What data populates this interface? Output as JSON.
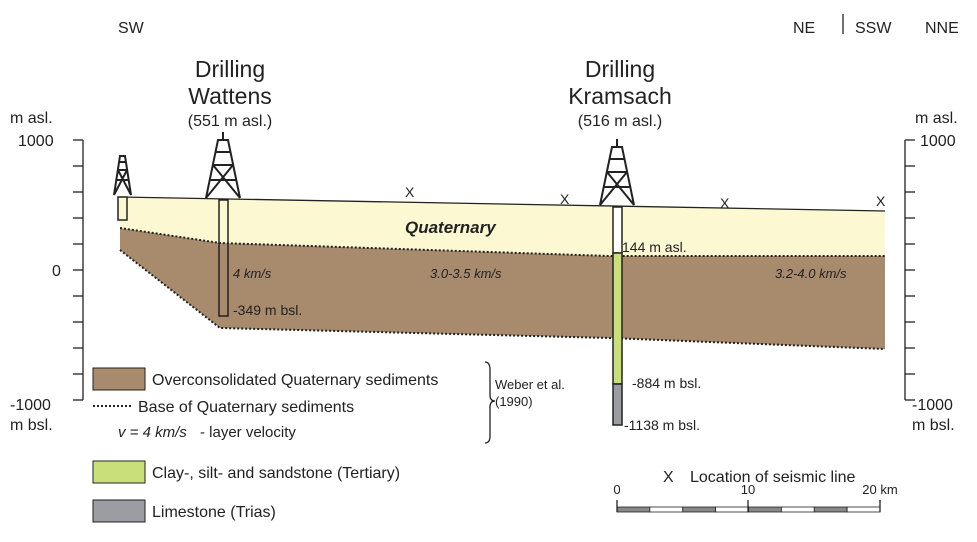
{
  "directions": {
    "left": "SW",
    "right_1": "NE",
    "right_2": "SSW",
    "right_3": "NNE"
  },
  "drillings": [
    {
      "name_1": "Drilling",
      "name_2": "Wattens",
      "elevation": "(551 m asl.)"
    },
    {
      "name_1": "Drilling",
      "name_2": "Kramsach",
      "elevation": "(516 m asl.)"
    }
  ],
  "left_axis": {
    "top_unit": "m asl.",
    "top": "1000",
    "zero": "0",
    "bottom": "-1000",
    "bottom_unit": "m bsl."
  },
  "right_axis": {
    "top_unit": "m asl.",
    "top": "1000",
    "bottom": "-1000",
    "bottom_unit": "m bsl."
  },
  "section": {
    "quaternary": "Quaternary",
    "velocities": [
      "4 km/s",
      "3.0-3.5 km/s",
      "3.2-4.0 km/s"
    ],
    "wattens_depth": "-349 m bsl.",
    "kramsach_base_quaternary": "144 m asl.",
    "kramsach_tertiary_base": "-884 m bsl.",
    "kramsach_depth": "-1138 m bsl.",
    "seismic_marks": [
      "X",
      "X",
      "X",
      "X"
    ]
  },
  "legend": {
    "overconsolidated": "Overconsolidated Quaternary sediments",
    "base": "Base of Quaternary sediments",
    "velocity_symbol": "v = 4 km/s",
    "velocity_label": "-  layer velocity",
    "reference_1": "Weber et al.",
    "reference_2": "(1990)",
    "tertiary": "Clay-, silt- and sandstone (Tertiary)",
    "trias": "Limestone (Trias)",
    "seismic_symbol": "X",
    "seismic_label": "Location of seismic line"
  },
  "scale": {
    "start": "0",
    "middle": "10",
    "end": "20 km"
  }
}
